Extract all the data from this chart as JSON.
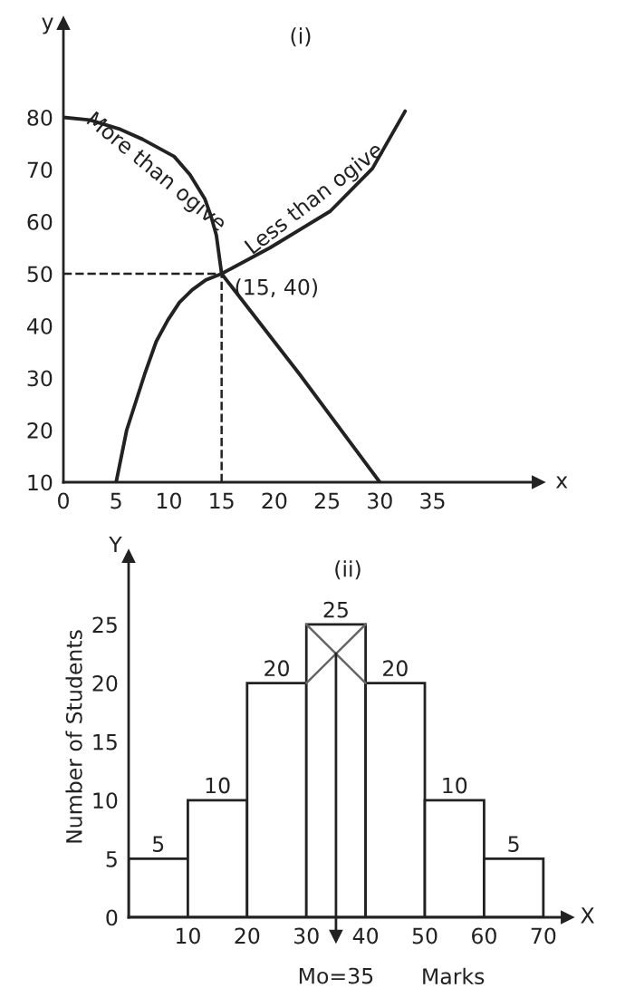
{
  "chart_data": [
    {
      "type": "line",
      "title": "(i)",
      "xlabel": "x",
      "ylabel": "y",
      "xlim": [
        0,
        45
      ],
      "ylim": [
        10,
        98
      ],
      "xticks": [
        0,
        5,
        10,
        15,
        20,
        25,
        30,
        35
      ],
      "yticks": [
        10,
        20,
        30,
        40,
        50,
        60,
        70,
        80
      ],
      "series": [
        {
          "name": "More than ogive",
          "color": "#222222",
          "x": [
            0,
            2.5,
            5.4,
            7.5,
            10.5,
            12,
            13.4,
            14,
            14.5,
            15,
            22.4,
            30
          ],
          "values": [
            80,
            79.5,
            77.7,
            75.8,
            72.5,
            69,
            64.4,
            61,
            57.4,
            50,
            30.7,
            10
          ]
        },
        {
          "name": "Less than ogive",
          "color": "#222222",
          "x": [
            5,
            6,
            7.7,
            8.8,
            9.9,
            11,
            12.2,
            13.5,
            15,
            19.6,
            25.3,
            29.3,
            32.4
          ],
          "values": [
            10,
            20,
            30.7,
            37,
            41.1,
            44.5,
            46.9,
            48.8,
            50,
            55,
            62,
            70.2,
            81.2
          ]
        }
      ],
      "ref_lines": [
        {
          "axis": "x",
          "value": 15,
          "line_style": "dashed"
        },
        {
          "axis": "y",
          "value": 50,
          "line_style": "dashed"
        }
      ],
      "annotations": [
        {
          "text": "(15, 40)",
          "x": 15,
          "y": 50
        }
      ],
      "grid": false,
      "legend": false
    },
    {
      "type": "histogram",
      "title": "(ii)",
      "xlabel": "Marks",
      "ylabel": "Number of Students",
      "bins": [
        0,
        10,
        20,
        30,
        40,
        50,
        60,
        70
      ],
      "values": [
        5,
        10,
        20,
        25,
        20,
        10,
        5
      ],
      "color": "#ffffff",
      "xlim": [
        0,
        74
      ],
      "ylim": [
        0,
        30.8
      ],
      "xticks": [
        10,
        20,
        30,
        40,
        50,
        60,
        70
      ],
      "yticks": [
        0,
        5,
        10,
        15,
        20,
        25
      ],
      "data_labels": true,
      "ref_lines": [
        {
          "axis": "x",
          "value": 35,
          "label": "Mo=35"
        }
      ],
      "annotations": [
        "X",
        "Y"
      ],
      "grid": false,
      "legend": false
    }
  ]
}
